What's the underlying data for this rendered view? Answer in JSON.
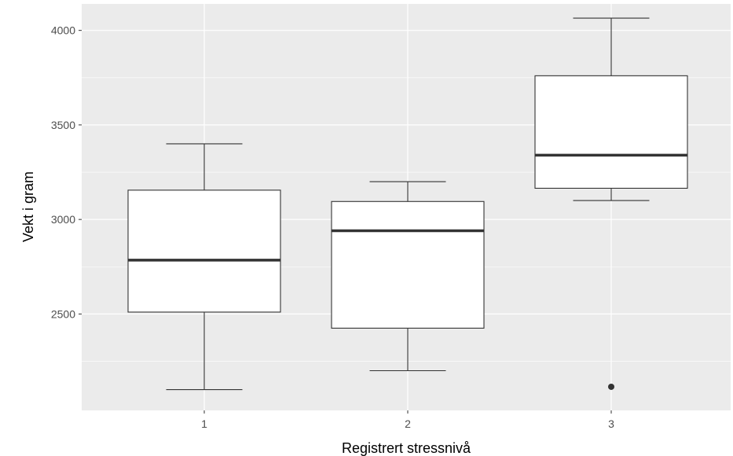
{
  "chart_data": {
    "type": "boxplot",
    "xlabel": "Registrert stressnivå",
    "ylabel": "Vekt i gram",
    "categories": [
      "1",
      "2",
      "3"
    ],
    "boxes": [
      {
        "category": "1",
        "whisker_low": 2100,
        "q1": 2510,
        "median": 2785,
        "q3": 3155,
        "whisker_high": 3400,
        "outliers": []
      },
      {
        "category": "2",
        "whisker_low": 2200,
        "q1": 2425,
        "median": 2940,
        "q3": 3095,
        "whisker_high": 3200,
        "outliers": []
      },
      {
        "category": "3",
        "whisker_low": 3100,
        "q1": 3165,
        "median": 3340,
        "q3": 3760,
        "whisker_high": 4065,
        "outliers": [
          2115
        ]
      }
    ],
    "yticks": [
      2500,
      3000,
      3500,
      4000
    ],
    "ylim": [
      1990,
      4140
    ],
    "grid": true,
    "colors": {
      "panel": "#ebebeb",
      "grid": "#ffffff",
      "box_fill": "#ffffff",
      "box_line": "#333333",
      "tick_text": "#4d4d4d"
    }
  }
}
